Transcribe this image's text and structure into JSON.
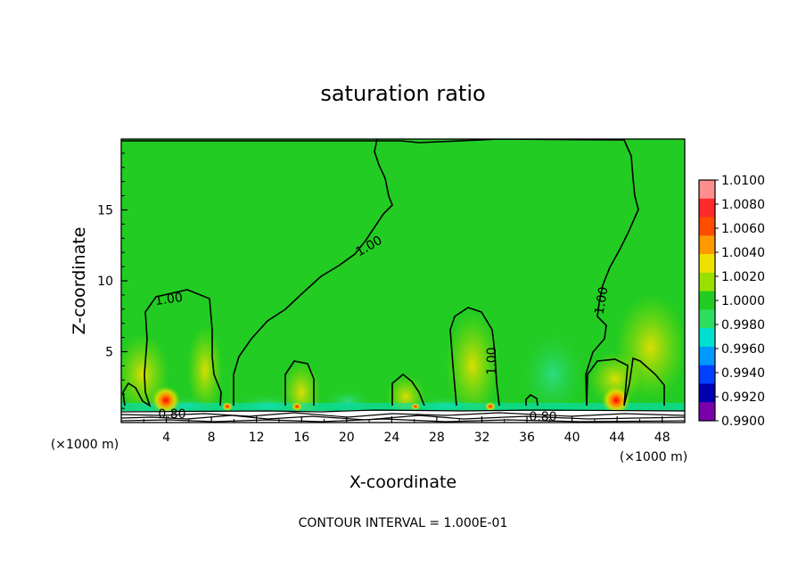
{
  "chart_data": {
    "type": "heatmap",
    "title": "saturation ratio",
    "xlabel": "X-coordinate",
    "ylabel": "Z-coordinate",
    "x_unit_left": "(×1000 m)",
    "x_unit_right": "(×1000 m)",
    "xlim": [
      0,
      50
    ],
    "ylim": [
      0,
      20
    ],
    "x_ticks": [
      "4",
      "8",
      "12",
      "16",
      "20",
      "24",
      "28",
      "32",
      "36",
      "40",
      "44",
      "48"
    ],
    "y_ticks": [
      "5",
      "10",
      "15"
    ],
    "colorbar": {
      "min": 0.99,
      "max": 1.01,
      "labels": [
        "1.0100",
        "1.0080",
        "1.0060",
        "1.0040",
        "1.0020",
        "1.0000",
        "0.9980",
        "0.9960",
        "0.9940",
        "0.9920",
        "0.9900"
      ],
      "colors": [
        "#ff8f8f",
        "#ff2a2a",
        "#ff4d00",
        "#ff9900",
        "#f0e000",
        "#99e000",
        "#22cc22",
        "#2ede60",
        "#00e0d0",
        "#0099ff",
        "#0040ff",
        "#0000b0",
        "#7a00aa"
      ]
    },
    "contour_labels": [
      "1.00",
      "1.00",
      "1.00",
      "1.00",
      "0.80",
      "0.80"
    ],
    "footer": "CONTOUR INTERVAL = 1.000E-01",
    "background_color": "#22cc22"
  }
}
